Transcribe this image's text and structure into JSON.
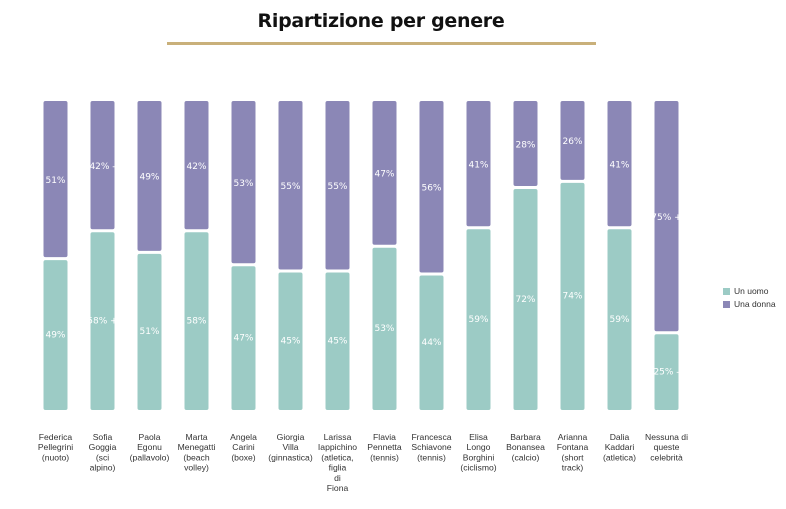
{
  "chart_data": {
    "type": "bar",
    "stacked": true,
    "normalized": true,
    "title": "Ripartizione per genere",
    "categories": [
      "Federica Pellegrini (nuoto)",
      "Sofia Goggia (sci alpino)",
      "Paola Egonu (pallavolo)",
      "Marta Menegatti (beach volley)",
      "Angela Carini (boxe)",
      "Giorgia Villa (ginnastica)",
      "Larissa Iappichino (atletica, figlia di Fiona",
      "Flavia Pennetta (tennis)",
      "Francesca Schiavone (tennis)",
      "Elisa Longo Borghini (ciclismo)",
      "Barbara Bonansea (calcio)",
      "Arianna Fontana (short track)",
      "Dalia Kaddari (atletica)",
      "Nessuna di queste celebrità"
    ],
    "category_lines": [
      [
        "Federica",
        "Pellegrini",
        "(nuoto)"
      ],
      [
        "Sofia",
        "Goggia",
        "(sci",
        "alpino)"
      ],
      [
        "Paola",
        "Egonu",
        "(pallavolo)"
      ],
      [
        "Marta",
        "Menegatti",
        "(beach",
        "volley)"
      ],
      [
        "Angela",
        "Carini",
        "(boxe)"
      ],
      [
        "Giorgia",
        "Villa",
        "(ginnastica)"
      ],
      [
        "Larissa",
        "Iappichino",
        "(atletica,",
        "figlia",
        "di",
        "Fiona"
      ],
      [
        "Flavia",
        "Pennetta",
        "(tennis)"
      ],
      [
        "Francesca",
        "Schiavone",
        "(tennis)"
      ],
      [
        "Elisa",
        "Longo",
        "Borghini",
        "(ciclismo)"
      ],
      [
        "Barbara",
        "Bonansea",
        "(calcio)"
      ],
      [
        "Arianna",
        "Fontana",
        "(short",
        "track)"
      ],
      [
        "Dalia",
        "Kaddari",
        "(atletica)"
      ],
      [
        "Nessuna di",
        "queste",
        "celebrità"
      ]
    ],
    "series": [
      {
        "name": "Un uomo",
        "color": "#9ccbc5",
        "values": [
          49,
          58,
          51,
          58,
          47,
          45,
          45,
          53,
          44,
          59,
          72,
          74,
          59,
          25
        ],
        "labels": [
          "49%",
          "58% +",
          "51%",
          "58%",
          "47%",
          "45%",
          "45%",
          "53%",
          "44%",
          "59%",
          "72%",
          "74%",
          "59%",
          "25% -"
        ]
      },
      {
        "name": "Una donna",
        "color": "#8b87b6",
        "values": [
          51,
          42,
          49,
          42,
          53,
          55,
          55,
          47,
          56,
          41,
          28,
          26,
          41,
          75
        ],
        "labels": [
          "51%",
          "42% -",
          "49%",
          "42%",
          "53%",
          "55%",
          "55%",
          "47%",
          "56%",
          "41%",
          "28%",
          "26%",
          "41%",
          "75% +"
        ]
      }
    ],
    "ylim": [
      0,
      100
    ],
    "legend_position": "right",
    "grid": false
  }
}
